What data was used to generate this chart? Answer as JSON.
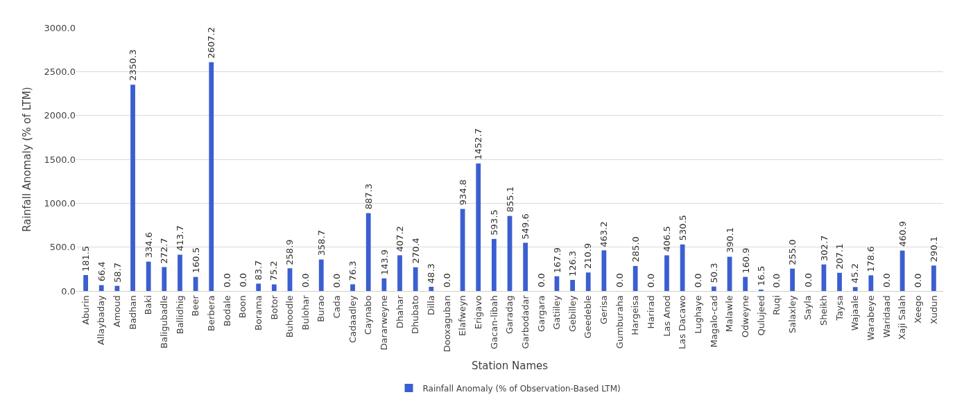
{
  "chart_data": {
    "type": "bar",
    "xlabel": "Station Names",
    "ylabel": "Rainfall Anomaly (% of LTM)",
    "categories": [
      "Aburin",
      "Allaybaday",
      "Amoud",
      "Badhan",
      "Baki",
      "Baligubadle",
      "Ballidhig",
      "Beer",
      "Berbera",
      "Bodale",
      "Boon",
      "Borama",
      "Botor",
      "Buhoodle",
      "Bulohar",
      "Burao",
      "Cada",
      "Cadaadley",
      "Caynabo",
      "Dararweyne",
      "Dhahar",
      "Dhubato",
      "Dilla",
      "Dooxaguban",
      "Elafweyn",
      "Erigavo",
      "Gacan-libah",
      "Garadag",
      "Garbodadar",
      "Gargara",
      "Gatiiley",
      "Gebilley",
      "Geedeble",
      "Gerisa",
      "Gumburaha",
      "Hargeisa",
      "Harirad",
      "Las Anod",
      "Las Dacawo",
      "Lughaye",
      "Magalo-cad",
      "Malawle",
      "Odweyne",
      "Qulujeed",
      "Ruqi",
      "Salaxley",
      "Sayla",
      "Sheikh",
      "Taysa",
      "Wajaale",
      "Warabeye",
      "Waridaad",
      "Xaji Salah",
      "Xeego",
      "Xudun"
    ],
    "series": [
      {
        "name": "Rainfall Anomaly (% of Observation-Based LTM)",
        "color": "#3b5fd0",
        "values": [
          181.5,
          66.4,
          58.7,
          2350.3,
          334.6,
          272.7,
          413.7,
          160.5,
          2607.2,
          0.0,
          0.0,
          83.7,
          75.2,
          258.9,
          0.0,
          358.7,
          0.0,
          76.3,
          887.3,
          143.9,
          407.2,
          270.4,
          48.3,
          0.0,
          934.8,
          1452.7,
          593.5,
          855.1,
          549.6,
          0.0,
          167.9,
          126.3,
          210.9,
          463.2,
          0.0,
          285.0,
          0.0,
          406.5,
          530.5,
          0.0,
          50.3,
          390.1,
          160.9,
          16.5,
          0.0,
          255.0,
          0.0,
          302.7,
          207.1,
          45.2,
          178.6,
          0.0,
          460.9,
          0.0,
          290.1
        ],
        "value_labels": [
          "181.5",
          "66.4",
          "58.7",
          "2350.3",
          "334.6",
          "272.7",
          "413.7",
          "160.5",
          "2607.2",
          "0.0",
          "0.0",
          "83.7",
          "75.2",
          "258.9",
          "0.0",
          "358.7",
          "0.0",
          "76.3",
          "887.3",
          "143.9",
          "407.2",
          "270.4",
          "48.3",
          "0.0",
          "934.8",
          "1452.7",
          "593.5",
          "855.1",
          "549.6",
          "0.0",
          "167.9",
          "126.3",
          "210.9",
          "463.2",
          "0.0",
          "285.0",
          "0.0",
          "406.5",
          "530.5",
          "0.0",
          "50.3",
          "390.1",
          "160.9",
          "16.5",
          "0.0",
          "255.0",
          "0.0",
          "302.7",
          "207.1",
          "45.2",
          "178.6",
          "0.0",
          "460.9",
          "0.0",
          "290.1"
        ]
      }
    ],
    "ylim": [
      0,
      3000
    ],
    "yticks": [
      {
        "value": 0,
        "label": "0.0"
      },
      {
        "value": 500,
        "label": "500.0"
      },
      {
        "value": 1000,
        "label": "1000.0"
      },
      {
        "value": 1500,
        "label": "1500.0"
      },
      {
        "value": 2000,
        "label": "2000.0"
      },
      {
        "value": 2500,
        "label": "2500.0"
      },
      {
        "value": 3000,
        "label": "3000.0"
      }
    ],
    "grid": "y",
    "legend": "bottom"
  }
}
